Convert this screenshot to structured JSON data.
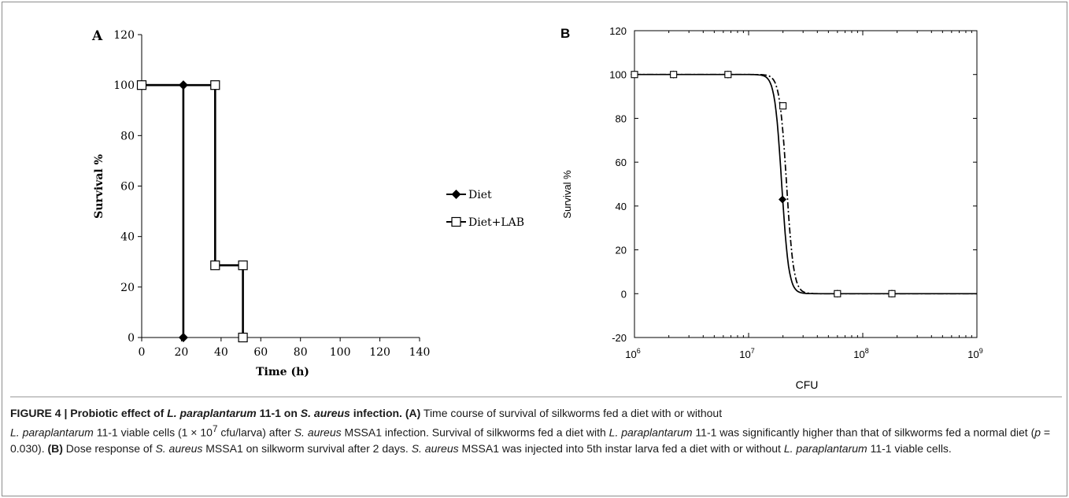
{
  "chart_data": [
    {
      "panel": "A",
      "type": "line",
      "step": true,
      "xlabel": "Time (h)",
      "ylabel": "Survival %",
      "xlim": [
        0,
        140
      ],
      "ylim": [
        0,
        120
      ],
      "x_ticks": [
        "0",
        "20",
        "40",
        "60",
        "80",
        "100",
        "120",
        "140"
      ],
      "y_ticks": [
        "0",
        "20",
        "40",
        "60",
        "80",
        "100",
        "120"
      ],
      "legend_position": "right",
      "series": [
        {
          "name": "Diet",
          "marker": "filled-diamond",
          "points": [
            [
              0,
              100
            ],
            [
              21,
              100
            ],
            [
              21,
              0
            ]
          ]
        },
        {
          "name": "Diet+LAB",
          "marker": "open-square",
          "points": [
            [
              0,
              100
            ],
            [
              37,
              100
            ],
            [
              37,
              28.6
            ],
            [
              51,
              28.6
            ],
            [
              51,
              0
            ]
          ]
        }
      ]
    },
    {
      "panel": "B",
      "type": "line",
      "xlabel": "CFU",
      "ylabel": "Survival %",
      "x_scale": "log",
      "xlim": [
        1000000,
        1000000000
      ],
      "ylim": [
        -20,
        120
      ],
      "x_ticks": [
        {
          "base": "10",
          "exp": "6"
        },
        {
          "base": "10",
          "exp": "7"
        },
        {
          "base": "10",
          "exp": "8"
        },
        {
          "base": "10",
          "exp": "9"
        }
      ],
      "y_ticks": [
        "-20",
        "0",
        "20",
        "40",
        "60",
        "80",
        "100",
        "120"
      ],
      "series": [
        {
          "style": "solid",
          "marker": "filled-diamond",
          "ec50": 19500000,
          "hill": 14,
          "points": [
            [
              1000000,
              100
            ],
            [
              2200000,
              100
            ],
            [
              6600000,
              100
            ],
            [
              19800000,
              43
            ],
            [
              60000000,
              0
            ],
            [
              180000000,
              0
            ]
          ]
        },
        {
          "style": "dash-dot",
          "marker": "open-square",
          "ec50": 21500000,
          "hill": 14,
          "points": [
            [
              1000000,
              100
            ],
            [
              2200000,
              100
            ],
            [
              6600000,
              100
            ],
            [
              20000000,
              85.7
            ],
            [
              60000000,
              0
            ],
            [
              180000000,
              0
            ]
          ]
        }
      ]
    }
  ],
  "caption": {
    "figure_label": "FIGURE 4 | ",
    "title_parts": [
      "Probiotic effect of ",
      "L. paraplantarum",
      " 11-1 on ",
      "S. aureus",
      " infection."
    ],
    "a_label": "(A)",
    "a_text_1": " Time course of survival of silkworms fed a diet with or without ",
    "organism_lp": "L. paraplantarum",
    "a_text_2": " 11-1 viable cells (1 × 10",
    "a_exp": "7",
    "a_text_3": " cfu/larva) after ",
    "organism_sa": "S. aureus",
    "a_text_4": " MSSA1 infection. Survival of silkworms fed a diet with ",
    "a_text_5": " 11-1 was significantly higher than that of silkworms fed a normal diet (",
    "p_symbol": "p",
    "a_text_6": " = 0.030). ",
    "b_label": "(B)",
    "b_text_1": " Dose response of ",
    "b_text_2": " MSSA1 on silkworm survival after 2 days. ",
    "b_text_3": " MSSA1 was injected into 5th instar larva fed a diet with or without ",
    "b_text_4": " 11-1 viable cells."
  }
}
